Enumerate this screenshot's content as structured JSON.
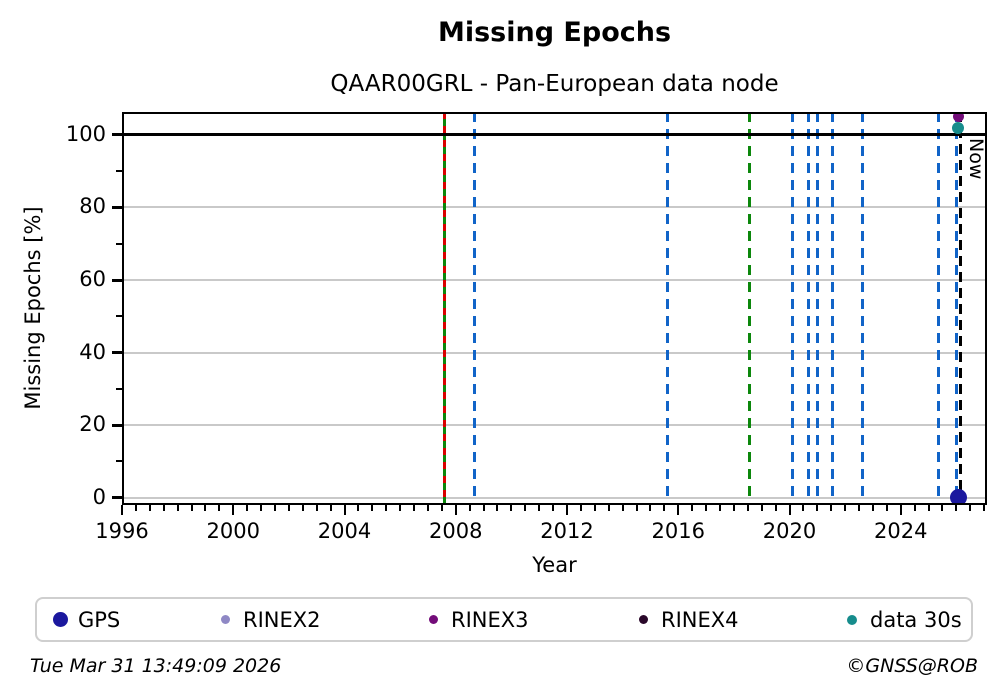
{
  "chart_data": {
    "type": "scatter",
    "title": "Missing Epochs",
    "subtitle": "QAAR00GRL - Pan-European data node",
    "xlabel": "Year",
    "ylabel": "Missing Epochs [%]",
    "xlim": [
      1996,
      2027.1
    ],
    "ylim": [
      -2,
      106.3
    ],
    "xticks": [
      1996,
      2000,
      2004,
      2008,
      2012,
      2016,
      2020,
      2024
    ],
    "yticks": [
      0,
      20,
      40,
      60,
      80,
      100
    ],
    "x_minor_step": 0.5,
    "y_minor_ticks": [
      10,
      30,
      50,
      70,
      90
    ],
    "grid": "horizontal",
    "grid_color": "#c9c9c9",
    "hline_y": 100,
    "hline_color": "#000000",
    "now_line": {
      "year": 2026.13,
      "label": "Now",
      "color": "#000000",
      "style": "dashed"
    },
    "event_lines": [
      {
        "year": 2007.61,
        "style": "solid",
        "color": "#0c870c"
      },
      {
        "year": 2007.61,
        "style": "dashed",
        "color": "#d90000"
      },
      {
        "year": 2008.69,
        "style": "dashed",
        "color": "#1164c8"
      },
      {
        "year": 2015.6,
        "style": "dashed",
        "color": "#1164c8"
      },
      {
        "year": 2018.55,
        "style": "dashed",
        "color": "#0c870c"
      },
      {
        "year": 2020.09,
        "style": "dashed",
        "color": "#1164c8"
      },
      {
        "year": 2020.7,
        "style": "dashed",
        "color": "#1164c8"
      },
      {
        "year": 2020.99,
        "style": "dashed",
        "color": "#1164c8"
      },
      {
        "year": 2021.53,
        "style": "dashed",
        "color": "#1164c8"
      },
      {
        "year": 2022.61,
        "style": "dashed",
        "color": "#1164c8"
      },
      {
        "year": 2025.34,
        "style": "dashed",
        "color": "#1164c8"
      },
      {
        "year": 2025.99,
        "style": "dashed",
        "color": "#1164c8"
      }
    ],
    "points": [
      {
        "series": "GPS",
        "year": 2026.06,
        "value": 0,
        "color": "#1b189e",
        "size": 17
      },
      {
        "series": "RINEX3",
        "year": 2026.06,
        "value": 105,
        "color": "#730c79",
        "size": 11
      },
      {
        "series": "data 30s",
        "year": 2026.06,
        "value": 102,
        "color": "#168c8c",
        "size": 12
      }
    ],
    "legend": {
      "position": "bottom",
      "items": [
        {
          "label": "GPS",
          "color": "#1b189e",
          "size": 15,
          "offset": 16
        },
        {
          "label": "RINEX2",
          "color": "#8f88c5",
          "size": 9,
          "offset": 184
        },
        {
          "label": "RINEX3",
          "color": "#730c79",
          "size": 9,
          "offset": 392
        },
        {
          "label": "RINEX4",
          "color": "#2a082a",
          "size": 9,
          "offset": 602
        },
        {
          "label": "data 30s",
          "color": "#168c8c",
          "size": 10,
          "offset": 810
        }
      ]
    }
  },
  "footer": {
    "timestamp": "Tue Mar 31 13:49:09 2026",
    "credit": "©GNSS@ROB"
  }
}
